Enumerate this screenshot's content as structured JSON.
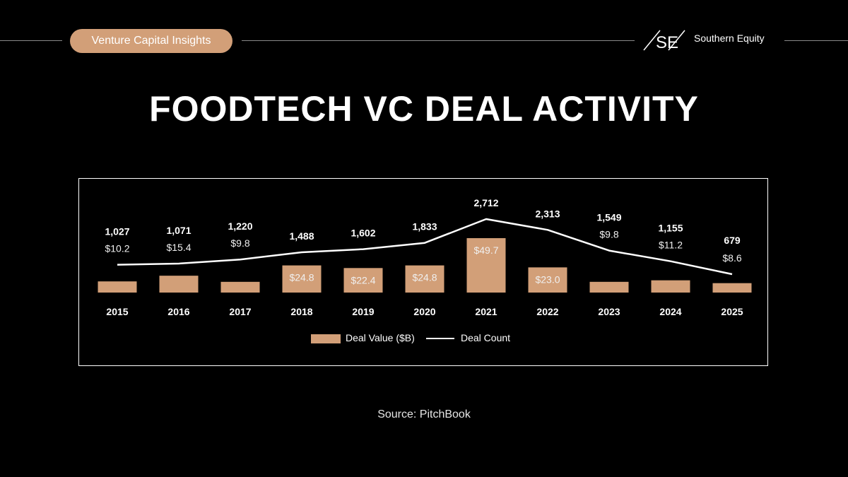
{
  "header": {
    "badge": "Venture Capital Insights",
    "brand": "Southern Equity",
    "logo_mark": "SE",
    "title": "FOODTECH VC DEAL ACTIVITY"
  },
  "colors": {
    "bar": "#d29f78",
    "line": "#ffffff",
    "background": "#000000"
  },
  "chart_data": {
    "type": "bar",
    "categories": [
      "2015",
      "2016",
      "2017",
      "2018",
      "2019",
      "2020",
      "2021",
      "2022",
      "2023",
      "2024",
      "2025"
    ],
    "series": [
      {
        "name": "Deal Value ($B)",
        "type": "bar",
        "values": [
          10.2,
          15.4,
          9.8,
          24.8,
          22.4,
          24.8,
          49.7,
          23.0,
          9.8,
          11.2,
          8.6
        ],
        "labels": [
          "$10.2",
          "$15.4",
          "$9.8",
          "$24.8",
          "$22.4",
          "$24.8",
          "$49.7",
          "$23.0",
          "$9.8",
          "$11.2",
          "$8.6"
        ]
      },
      {
        "name": "Deal Count",
        "type": "line",
        "values": [
          1027,
          1071,
          1220,
          1488,
          1602,
          1833,
          2712,
          2313,
          1549,
          1155,
          679
        ],
        "labels": [
          "1,027",
          "1,071",
          "1,220",
          "1,488",
          "1,602",
          "1,833",
          "2,712",
          "2,313",
          "1,549",
          "1,155",
          "679"
        ]
      }
    ],
    "legend": "bottom-center",
    "grid": false
  },
  "source": "Source: PitchBook"
}
